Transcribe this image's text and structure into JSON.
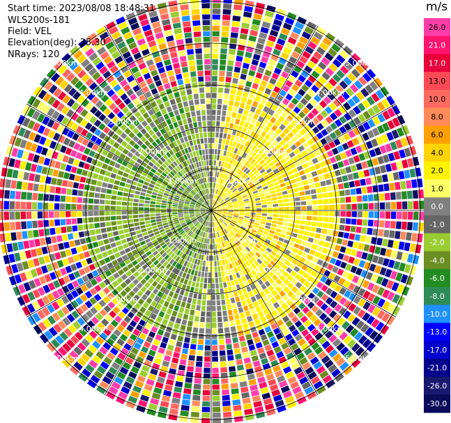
{
  "header": {
    "start_time": "Start time: 2023/08/08 18:48:31",
    "instrument": "WLS200s-181",
    "field": "Field: VEL",
    "elevation": "Elevation(deg): 35.30",
    "nrays": "NRays: 120"
  },
  "chart_data": {
    "type": "heatmap",
    "projection": "polar-ppi",
    "field": "VEL",
    "unit": "m/s",
    "nrays": 120,
    "elevation_deg": 35.3,
    "range_rings_km": [
      1.0,
      2.0,
      3.0,
      4.0,
      5.0
    ],
    "ring_labels": [
      "1.00km",
      "2.00km",
      "3.00km",
      "4.00km",
      "5.00km"
    ],
    "max_range_km": 5.1,
    "colorbar": {
      "title": "m/s",
      "ticks": [
        "26.0",
        "21.0",
        "17.0",
        "13.0",
        "10.0",
        "8.0",
        "6.0",
        "4.0",
        "2.0",
        "1.0",
        "0.0",
        "-1.0",
        "-2.0",
        "-4.0",
        "-6.0",
        "-8.0",
        "-10.0",
        "-13.0",
        "-17.0",
        "-21.0",
        "-26.0",
        "-30.0"
      ],
      "colors": [
        "#ff3da8",
        "#ff1470",
        "#e8003a",
        "#ff4a55",
        "#ff6a60",
        "#ff8a5a",
        "#ffa000",
        "#ffd400",
        "#fff200",
        "#ffff66",
        "#808080",
        "#666666",
        "#9acd32",
        "#6b8e23",
        "#228b22",
        "#2e8b57",
        "#1e90ff",
        "#0000ff",
        "#0000cd",
        "#00008b",
        "#191970",
        "#0a0a5a"
      ]
    }
  }
}
